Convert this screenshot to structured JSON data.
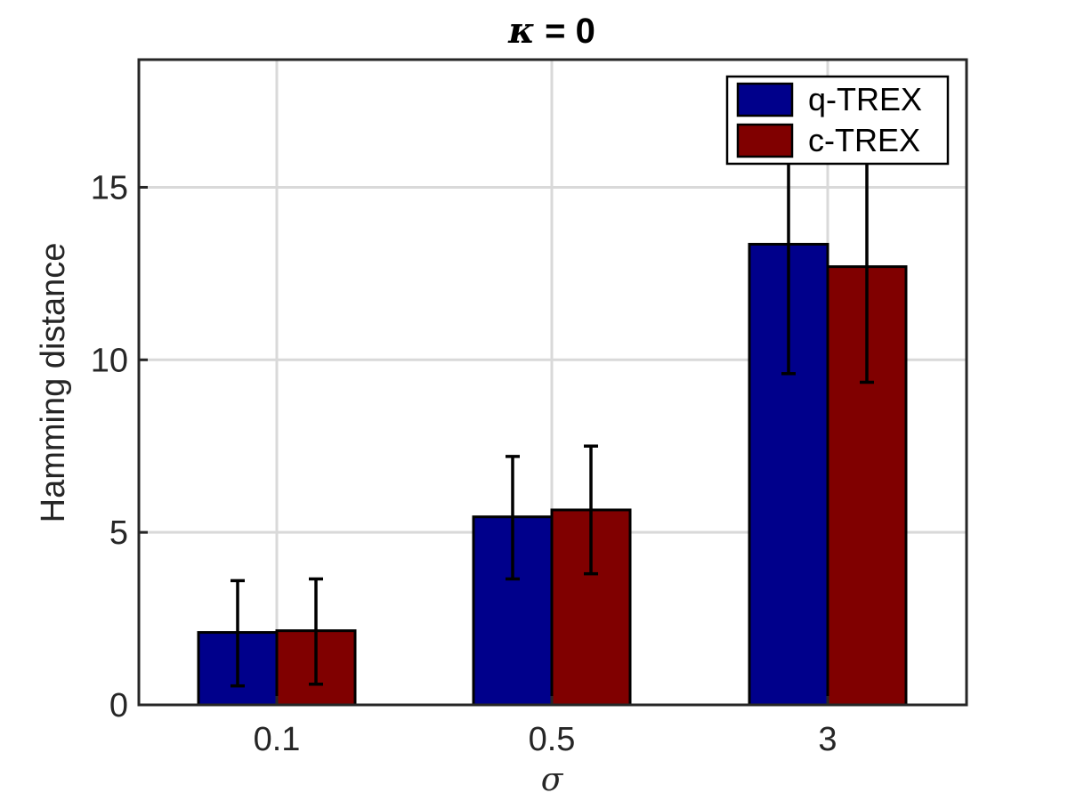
{
  "chart_data": {
    "type": "bar",
    "title_symbol": "κ",
    "title_rest": " = 0",
    "xlabel": "σ",
    "ylabel": "Hamming distance",
    "categories": [
      "0.1",
      "0.5",
      "3"
    ],
    "ylim": [
      0,
      18.7
    ],
    "yticks": [
      0,
      5,
      10,
      15
    ],
    "grid": true,
    "legend_position": "top-right",
    "series": [
      {
        "name": "q-TREX",
        "color": "#00008b",
        "values": [
          2.1,
          5.45,
          13.35
        ],
        "error_low": [
          0.55,
          3.65,
          9.6
        ],
        "error_high": [
          3.6,
          7.2,
          16.9
        ]
      },
      {
        "name": "c-TREX",
        "color": "#800000",
        "values": [
          2.15,
          5.65,
          12.7
        ],
        "error_low": [
          0.6,
          3.8,
          9.35
        ],
        "error_high": [
          3.65,
          7.5,
          16.05
        ]
      }
    ]
  }
}
